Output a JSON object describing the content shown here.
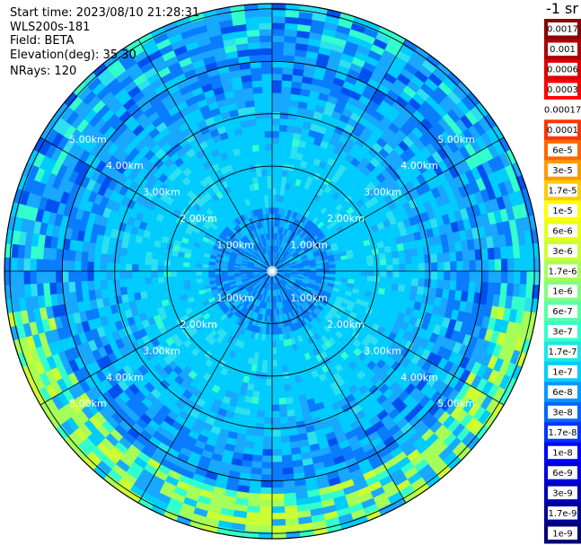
{
  "header": {
    "start_time": "Start time: 2023/08/10 21:28:31",
    "instrument": "WLS200s-181",
    "field": "Field: BETA",
    "elevation": "Elevation(deg): 35.30",
    "nrays": "NRays: 120"
  },
  "chart_data": {
    "type": "heatmap",
    "projection": "polar (PPI)",
    "range_rings": [
      "1.00km",
      "2.00km",
      "3.00km",
      "4.00km",
      "5.00km"
    ],
    "range_ring_values_km": [
      1,
      2,
      3,
      4,
      5
    ],
    "max_range_km": 5.1,
    "spoke_angles_deg": [
      0,
      30,
      60,
      90,
      120,
      150,
      180,
      210,
      240,
      270,
      300,
      330
    ],
    "colorscale": "log",
    "colorbar_unit": "-1 sr",
    "colorbar_labels": [
      "0.0017",
      "0.001",
      "0.0006",
      "0.0003",
      "0.00017",
      "0.0001",
      "6e-5",
      "3e-5",
      "1.7e-5",
      "1e-5",
      "6e-6",
      "3e-6",
      "1.7e-6",
      "1e-6",
      "6e-7",
      "3e-7",
      "1.7e-7",
      "1e-7",
      "6e-8",
      "3e-8",
      "1.7e-8",
      "1e-8",
      "6e-9",
      "3e-9",
      "1.7e-9",
      "1e-9"
    ],
    "colorbar_colors": [
      "#8b0000",
      "#b00000",
      "#dd0000",
      "#ff0000",
      "#ffffff",
      "#ff3300",
      "#ff6600",
      "#ff9900",
      "#ffcc00",
      "#ffff00",
      "#e6ff1a",
      "#ccff33",
      "#a6ff59",
      "#80ff80",
      "#59ffa6",
      "#33ffcc",
      "#1ae6e6",
      "#00ccff",
      "#0099ff",
      "#0066ff",
      "#0033ff",
      "#0000ff",
      "#0000dd",
      "#0000bb",
      "#000099",
      "#000077"
    ],
    "dominant_level": "1e-7",
    "enhanced_ring_km": [
      4.3,
      5.1
    ],
    "enhanced_ring_level": "1e-6"
  },
  "colors": {
    "background": "#ffffff",
    "grid": "#000000",
    "ring_label": "#ffffff"
  }
}
